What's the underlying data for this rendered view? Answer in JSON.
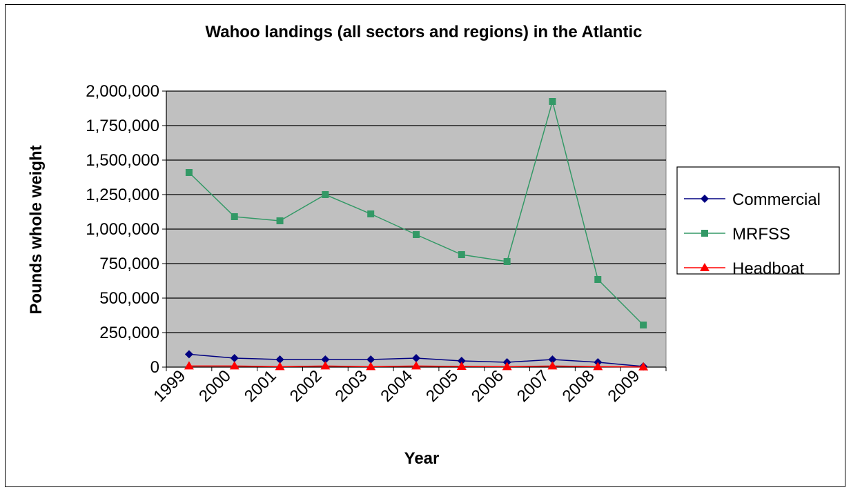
{
  "chart_data": {
    "type": "line",
    "title": "Wahoo landings (all sectors and regions) in the Atlantic",
    "xlabel": "Year",
    "ylabel": "Pounds whole weight",
    "categories": [
      "1999",
      "2000",
      "2001",
      "2002",
      "2003",
      "2004",
      "2005",
      "2006",
      "2007",
      "2008",
      "2009"
    ],
    "yticks": [
      "0",
      "250,000",
      "500,000",
      "750,000",
      "1,000,000",
      "1,250,000",
      "1,500,000",
      "1,750,000",
      "2,000,000"
    ],
    "ylim": [
      0,
      2000000
    ],
    "grid": true,
    "legend_position": "right",
    "plot_background": "#c0c0c0",
    "series": [
      {
        "name": "Commercial",
        "color": "#000080",
        "marker": "diamond",
        "values": [
          93000,
          65000,
          55000,
          55000,
          55000,
          65000,
          45000,
          35000,
          55000,
          35000,
          5000
        ]
      },
      {
        "name": "MRFSS",
        "color": "#339966",
        "marker": "square",
        "values": [
          1410000,
          1090000,
          1060000,
          1250000,
          1110000,
          960000,
          815000,
          765000,
          1925000,
          635000,
          305000
        ]
      },
      {
        "name": "Headboat",
        "color": "#ff0000",
        "marker": "triangle",
        "values": [
          8000,
          8000,
          3000,
          8000,
          3000,
          8000,
          5000,
          3000,
          8000,
          3000,
          1000
        ]
      }
    ]
  }
}
